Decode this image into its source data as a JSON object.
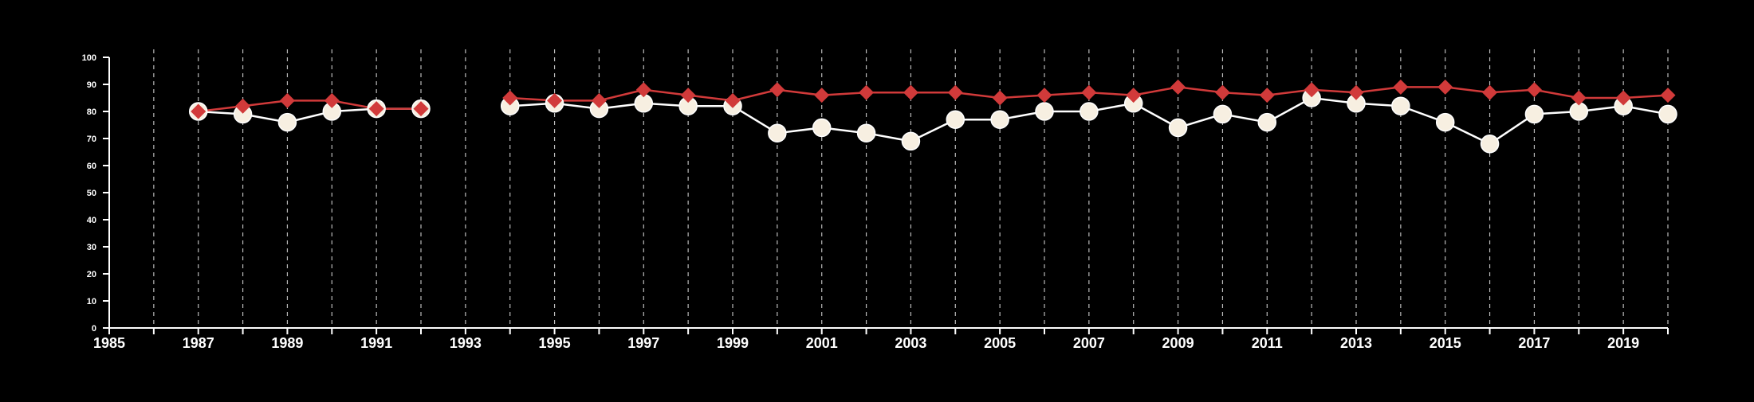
{
  "chart_data": {
    "type": "line",
    "title": "",
    "xlabel": "",
    "ylabel": "",
    "xlim": [
      1985,
      2020
    ],
    "ylim": [
      0,
      100
    ],
    "x_tick_labels": [
      "1985",
      "1987",
      "1989",
      "1991",
      "1993",
      "1995",
      "1997",
      "1999",
      "2001",
      "2003",
      "2005",
      "2007",
      "2009",
      "2011",
      "2013",
      "2015",
      "2017",
      "2019"
    ],
    "y_tick_labels": [
      "0",
      "10",
      "20",
      "30",
      "40",
      "50",
      "60",
      "70",
      "80",
      "90",
      "100"
    ],
    "vertical_grid": "dashed-yearly",
    "x": [
      1987,
      1988,
      1989,
      1990,
      1991,
      1992,
      1993,
      1994,
      1995,
      1996,
      1997,
      1998,
      1999,
      2000,
      2001,
      2002,
      2003,
      2004,
      2005,
      2006,
      2007,
      2008,
      2009,
      2010,
      2011,
      2012,
      2013,
      2014,
      2015,
      2016,
      2017,
      2018,
      2019,
      2020
    ],
    "series": [
      {
        "marker": "diamond",
        "color": "#d13a3a",
        "values": [
          80,
          82,
          84,
          84,
          81,
          81,
          null,
          85,
          84,
          84,
          88,
          86,
          84,
          88,
          86,
          87,
          87,
          87,
          85,
          86,
          87,
          86,
          89,
          87,
          86,
          88,
          87,
          89,
          89,
          87,
          88,
          85,
          85,
          86
        ]
      },
      {
        "marker": "circle",
        "color": "#f7efe1",
        "line_color": "#ffffff",
        "values": [
          80,
          79,
          76,
          80,
          81,
          81,
          null,
          82,
          83,
          81,
          83,
          82,
          82,
          72,
          74,
          72,
          69,
          77,
          77,
          80,
          80,
          83,
          74,
          79,
          76,
          85,
          83,
          82,
          76,
          68,
          79,
          80,
          82,
          79
        ]
      }
    ]
  }
}
